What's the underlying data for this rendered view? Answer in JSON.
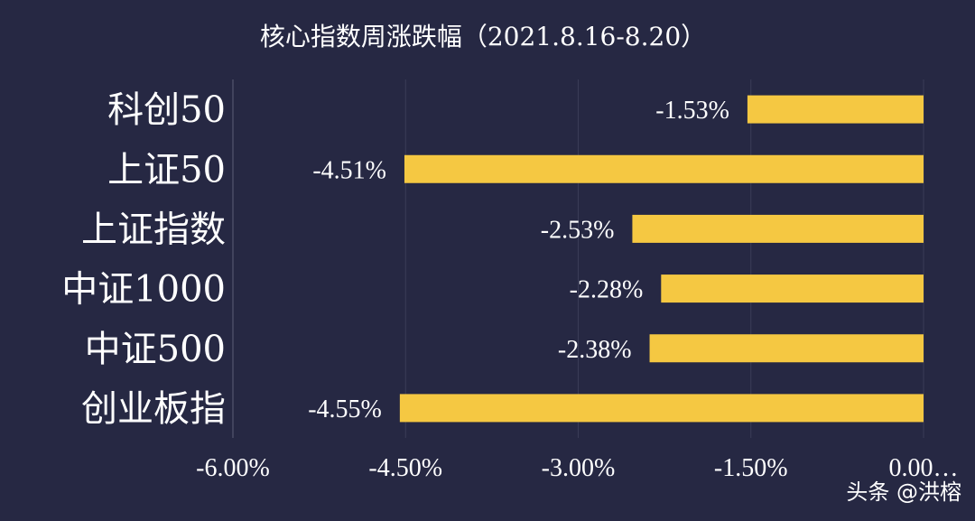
{
  "chart_data": {
    "type": "bar",
    "orientation": "horizontal",
    "title": "核心指数周涨跌幅（2021.8.16-8.20）",
    "categories": [
      "科创50",
      "上证50",
      "上证指数",
      "中证1000",
      "中证500",
      "创业板指"
    ],
    "values": [
      -1.53,
      -4.51,
      -2.53,
      -2.28,
      -2.38,
      -4.55
    ],
    "value_labels": [
      "-1.53%",
      "-4.51%",
      "-2.53%",
      "-2.28%",
      "-2.38%",
      "-4.55%"
    ],
    "xlim": [
      -6.0,
      0.0
    ],
    "x_ticks": [
      -6.0,
      -4.5,
      -3.0,
      -1.5,
      0.0
    ],
    "x_tick_labels": [
      "-6.00%",
      "-4.50%",
      "-3.00%",
      "-1.50%",
      "0.00…"
    ],
    "bar_color": "#f5c842",
    "background_color": "#262843",
    "grid": true
  },
  "watermark": "头条 @洪榕"
}
